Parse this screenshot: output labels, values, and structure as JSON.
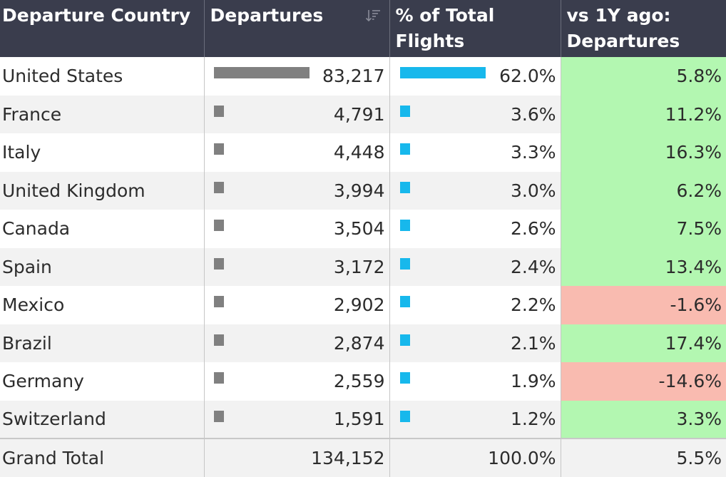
{
  "headers": {
    "country": "Departure Country",
    "departures": "Departures",
    "pct_line1": "% of Total",
    "pct_line2": "Flights",
    "change_line1": "vs 1Y ago:",
    "change_line2": "Departures"
  },
  "rows": [
    {
      "country": "United States",
      "departures": "83,217",
      "pct": "62.0%",
      "change": "5.8%",
      "dep_value": 83217,
      "pct_value": 62.0,
      "trend": "pos"
    },
    {
      "country": "France",
      "departures": "4,791",
      "pct": "3.6%",
      "change": "11.2%",
      "dep_value": 4791,
      "pct_value": 3.6,
      "trend": "pos"
    },
    {
      "country": "Italy",
      "departures": "4,448",
      "pct": "3.3%",
      "change": "16.3%",
      "dep_value": 4448,
      "pct_value": 3.3,
      "trend": "pos"
    },
    {
      "country": "United Kingdom",
      "departures": "3,994",
      "pct": "3.0%",
      "change": "6.2%",
      "dep_value": 3994,
      "pct_value": 3.0,
      "trend": "pos"
    },
    {
      "country": "Canada",
      "departures": "3,504",
      "pct": "2.6%",
      "change": "7.5%",
      "dep_value": 3504,
      "pct_value": 2.6,
      "trend": "pos"
    },
    {
      "country": "Spain",
      "departures": "3,172",
      "pct": "2.4%",
      "change": "13.4%",
      "dep_value": 3172,
      "pct_value": 2.4,
      "trend": "pos"
    },
    {
      "country": "Mexico",
      "departures": "2,902",
      "pct": "2.2%",
      "change": "-1.6%",
      "dep_value": 2902,
      "pct_value": 2.2,
      "trend": "neg"
    },
    {
      "country": "Brazil",
      "departures": "2,874",
      "pct": "2.1%",
      "change": "17.4%",
      "dep_value": 2874,
      "pct_value": 2.1,
      "trend": "pos"
    },
    {
      "country": "Germany",
      "departures": "2,559",
      "pct": "1.9%",
      "change": "-14.6%",
      "dep_value": 2559,
      "pct_value": 1.9,
      "trend": "neg"
    },
    {
      "country": "Switzerland",
      "departures": "1,591",
      "pct": "1.2%",
      "change": "3.3%",
      "dep_value": 1591,
      "pct_value": 1.2,
      "trend": "pos"
    }
  ],
  "grand_total": {
    "label": "Grand Total",
    "departures": "134,152",
    "pct": "100.0%",
    "change": "5.5%"
  },
  "colors": {
    "header_bg": "#3a3d4d",
    "departures_bar": "#808080",
    "pct_bar": "#17b8ec",
    "positive_bg": "#b3f7b1",
    "negative_bg": "#f9bbb0"
  },
  "icons": {
    "sort": "sort-descending-icon"
  }
}
